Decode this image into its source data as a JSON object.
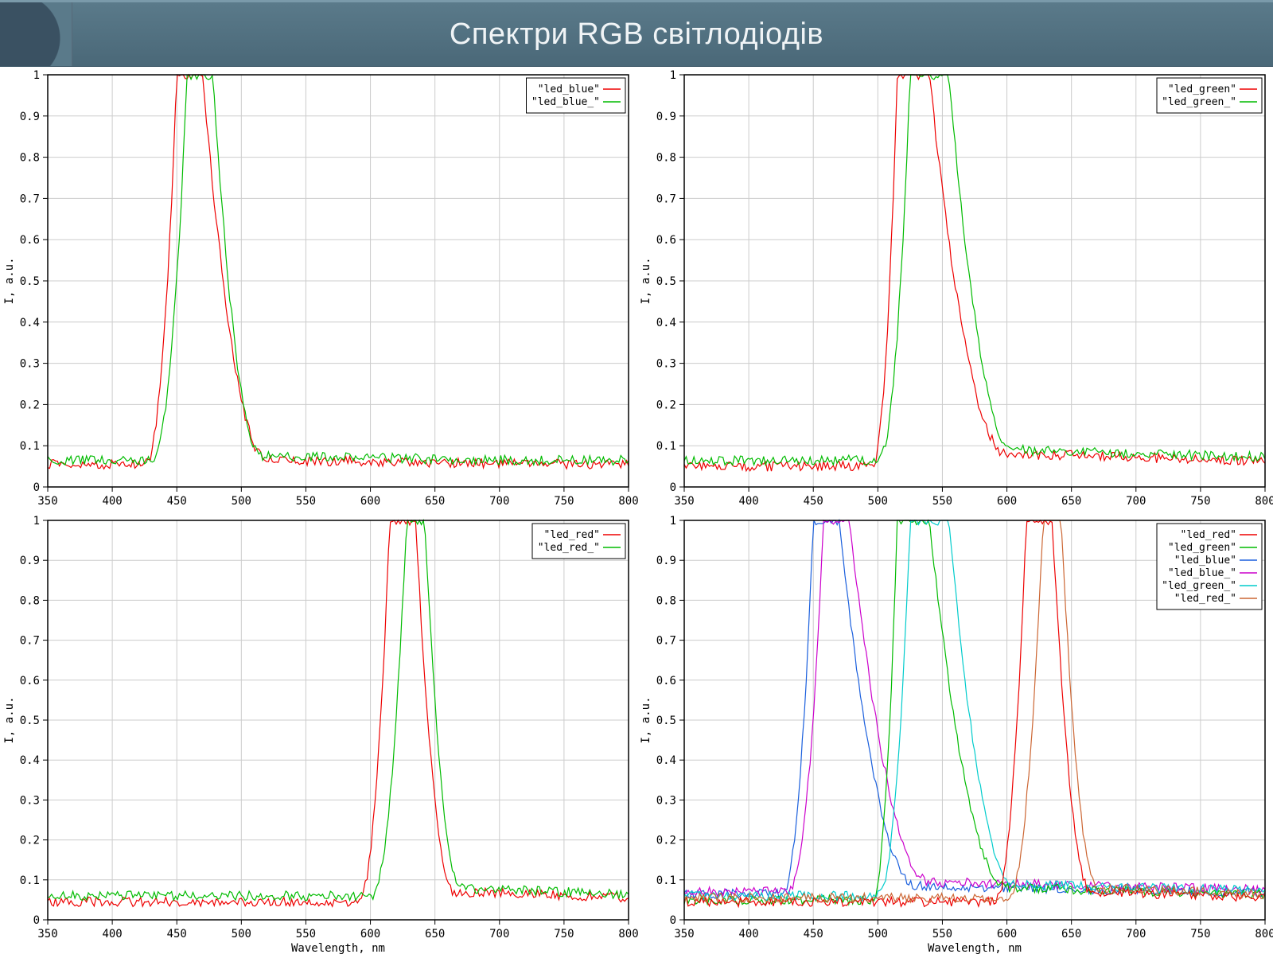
{
  "title": "Спектри RGB світлодіодів",
  "axis": {
    "xlabel": "Wavelength, nm",
    "ylabel": "I, a.u.",
    "xlim": [
      350,
      800
    ],
    "ylim": [
      0,
      1
    ],
    "xtick_step": 50,
    "ytick_step": 0.1,
    "xticks": [
      350,
      400,
      450,
      500,
      550,
      600,
      650,
      700,
      750,
      800
    ],
    "yticks": [
      0,
      0.1,
      0.2,
      0.3,
      0.4,
      0.5,
      0.6,
      0.7,
      0.8,
      0.9,
      1
    ],
    "grid_color": "#cccccc",
    "border_color": "#000000",
    "background_color": "#ffffff",
    "tick_fontsize": 14,
    "label_fontsize": 14,
    "font_family": "monospace"
  },
  "series_colors": {
    "red": "#ee0000",
    "green": "#00bb00",
    "blue": "#1a5fdd",
    "magenta": "#cc00cc",
    "cyan": "#00cccc",
    "orange": "#cc6633"
  },
  "line_width": 1.2,
  "noise_amplitude": 0.012,
  "panels": [
    {
      "id": "blue",
      "legend": [
        {
          "label": "\"led_blue\"",
          "color": "red"
        },
        {
          "label": "\"led_blue_\"",
          "color": "green"
        }
      ],
      "curves": [
        {
          "color": "red",
          "peak_nm": 460,
          "left_rise_start": 425,
          "left_rise_end": 450,
          "right_fall_start": 470,
          "right_fall_end": 520,
          "tail_level": 0.065,
          "baseline": 0.055
        },
        {
          "color": "green",
          "peak_nm": 468,
          "left_rise_start": 430,
          "left_rise_end": 458,
          "right_fall_start": 478,
          "right_fall_end": 515,
          "tail_level": 0.075,
          "baseline": 0.065
        }
      ]
    },
    {
      "id": "green",
      "legend": [
        {
          "label": "\"led_green\"",
          "color": "red"
        },
        {
          "label": "\"led_green_\"",
          "color": "green"
        }
      ],
      "curves": [
        {
          "color": "red",
          "peak_nm": 525,
          "left_rise_start": 495,
          "left_rise_end": 515,
          "right_fall_start": 540,
          "right_fall_end": 600,
          "tail_level": 0.08,
          "baseline": 0.05
        },
        {
          "color": "green",
          "peak_nm": 540,
          "left_rise_start": 500,
          "left_rise_end": 525,
          "right_fall_start": 555,
          "right_fall_end": 605,
          "tail_level": 0.09,
          "baseline": 0.065
        }
      ]
    },
    {
      "id": "red",
      "legend": [
        {
          "label": "\"led_red\"",
          "color": "red"
        },
        {
          "label": "\"led_red_\"",
          "color": "green"
        }
      ],
      "curves": [
        {
          "color": "red",
          "peak_nm": 625,
          "left_rise_start": 590,
          "left_rise_end": 615,
          "right_fall_start": 635,
          "right_fall_end": 665,
          "tail_level": 0.07,
          "baseline": 0.045
        },
        {
          "color": "green",
          "peak_nm": 635,
          "left_rise_start": 600,
          "left_rise_end": 628,
          "right_fall_start": 642,
          "right_fall_end": 670,
          "tail_level": 0.08,
          "baseline": 0.06
        }
      ]
    },
    {
      "id": "all",
      "legend": [
        {
          "label": "\"led_red\"",
          "color": "red"
        },
        {
          "label": "\"led_green\"",
          "color": "green"
        },
        {
          "label": "\"led_blue\"",
          "color": "blue"
        },
        {
          "label": "\"led_blue_\"",
          "color": "magenta"
        },
        {
          "label": "\"led_green_\"",
          "color": "cyan"
        },
        {
          "label": "\"led_red_\"",
          "color": "orange"
        }
      ],
      "curves": [
        {
          "color": "blue",
          "peak_nm": 460,
          "left_rise_start": 425,
          "left_rise_end": 450,
          "right_fall_start": 470,
          "right_fall_end": 530,
          "tail_level": 0.085,
          "baseline": 0.065
        },
        {
          "color": "magenta",
          "peak_nm": 468,
          "left_rise_start": 430,
          "left_rise_end": 458,
          "right_fall_start": 478,
          "right_fall_end": 540,
          "tail_level": 0.095,
          "baseline": 0.07
        },
        {
          "color": "green",
          "peak_nm": 525,
          "left_rise_start": 495,
          "left_rise_end": 515,
          "right_fall_start": 540,
          "right_fall_end": 600,
          "tail_level": 0.08,
          "baseline": 0.05
        },
        {
          "color": "cyan",
          "peak_nm": 540,
          "left_rise_start": 500,
          "left_rise_end": 525,
          "right_fall_start": 555,
          "right_fall_end": 605,
          "tail_level": 0.09,
          "baseline": 0.06
        },
        {
          "color": "red",
          "peak_nm": 625,
          "left_rise_start": 590,
          "left_rise_end": 615,
          "right_fall_start": 635,
          "right_fall_end": 665,
          "tail_level": 0.07,
          "baseline": 0.045
        },
        {
          "color": "orange",
          "peak_nm": 635,
          "left_rise_start": 600,
          "left_rise_end": 628,
          "right_fall_start": 642,
          "right_fall_end": 670,
          "tail_level": 0.08,
          "baseline": 0.055
        }
      ]
    }
  ]
}
